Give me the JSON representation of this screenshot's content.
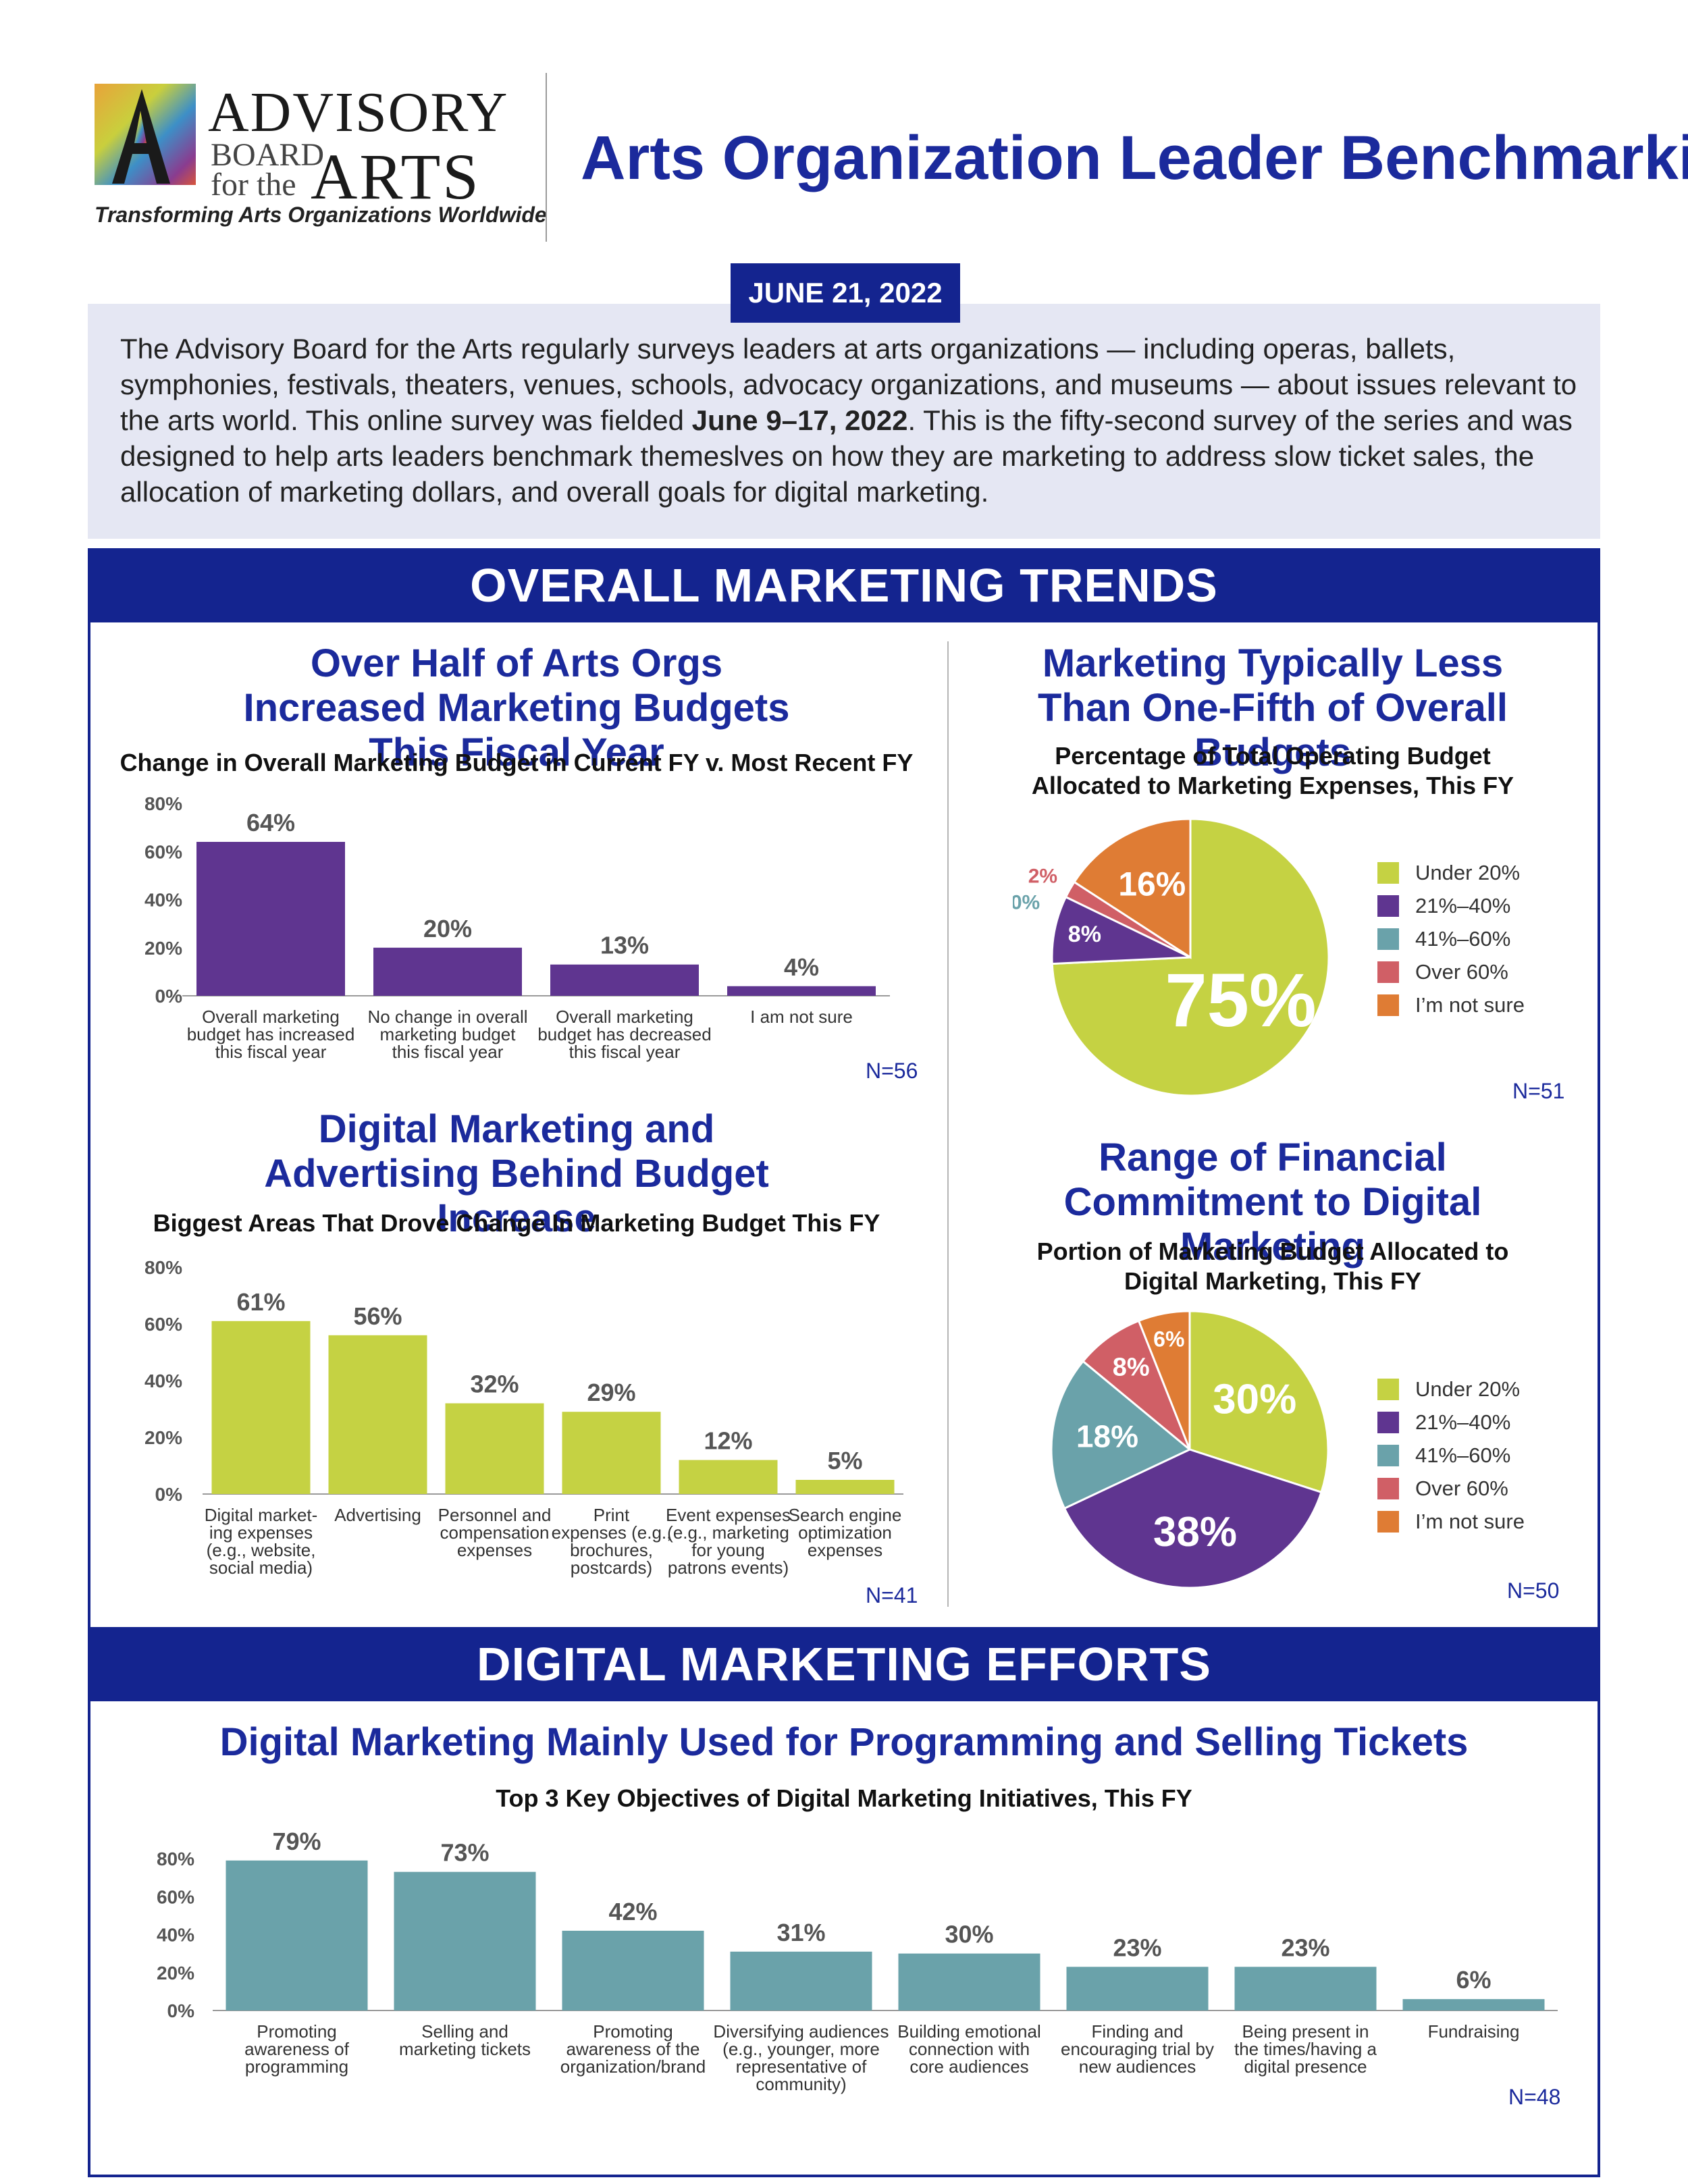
{
  "header": {
    "logo": {
      "line1": "ADVISORY",
      "line2": "BOARD",
      "line3": "for the",
      "line4": "ARTS",
      "tagline": "Transforming Arts Organizations Worldwide"
    },
    "title": "Arts Organization Leader Benchmarking",
    "date": "JUNE 21, 2022"
  },
  "intro": {
    "part1": "The Advisory Board for the Arts regularly surveys leaders at arts organizations — including  operas, ballets, symphonies, festivals, theaters, venues, schools, advocacy organizations, and museums — about issues relevant to the arts world. This online survey was fielded ",
    "bold": "June 9–17, 2022",
    "part2": ". This is the fifty-second survey of the series and was designed to help arts leaders benchmark themeslves on how they are marketing to address slow ticket sales, the allocation of marketing dollars, and overall goals for digital marketing."
  },
  "sections": {
    "trends": "OVERALL MARKETING TRENDS",
    "digital": "DIGITAL MARKETING EFFORTS"
  },
  "colors": {
    "navy": "#14248f",
    "purple": "#5f3590",
    "lime": "#c5d243",
    "teal": "#6aa2aa",
    "red": "#d05f66",
    "orange": "#df7c34"
  },
  "chart_data": [
    {
      "type": "bar",
      "title": "Over Half of Arts Orgs Increased Marketing Budgets This Fiscal Year",
      "subtitle": "Change in Overall Marketing Budget in Current FY v. Most Recent FY",
      "categories": [
        [
          "Overall marketing",
          "budget has increased",
          "this fiscal year"
        ],
        [
          "No change in overall",
          "marketing budget",
          "this fiscal year"
        ],
        [
          "Overall marketing",
          "budget has decreased",
          "this fiscal year"
        ],
        [
          "I am not sure"
        ]
      ],
      "values": [
        64,
        20,
        13,
        4
      ],
      "value_labels": [
        "64%",
        "20%",
        "13%",
        "4%"
      ],
      "yticks": [
        "0%",
        "20%",
        "40%",
        "60%",
        "80%"
      ],
      "ylim": [
        0,
        80
      ],
      "color": "#5f3590",
      "n": "N=56"
    },
    {
      "type": "bar",
      "title": "Digital Marketing and Advertising Behind Budget Increase",
      "subtitle": "Biggest Areas That Drove Change In Marketing Budget This FY",
      "categories": [
        [
          "Digital market-",
          "ing expenses",
          "(e.g., website,",
          "social media)"
        ],
        [
          "Advertising"
        ],
        [
          "Personnel and",
          "compensation",
          "expenses"
        ],
        [
          "Print",
          "expenses (e.g.,",
          "brochures,",
          "postcards)"
        ],
        [
          "Event expenses",
          "(e.g., marketing",
          "for young",
          "patrons events)"
        ],
        [
          "Search engine",
          "optimization",
          "expenses"
        ]
      ],
      "values": [
        61,
        56,
        32,
        29,
        12,
        5
      ],
      "value_labels": [
        "61%",
        "56%",
        "32%",
        "29%",
        "12%",
        "5%"
      ],
      "yticks": [
        "0%",
        "20%",
        "40%",
        "60%",
        "80%"
      ],
      "ylim": [
        0,
        80
      ],
      "color": "#c5d243",
      "n": "N=41"
    },
    {
      "type": "pie",
      "title": "Marketing Typically Less Than One-Fifth of Overall Budgets",
      "subtitle": "Percentage of Total Operating Budget Allocated to Marketing Expenses, This FY",
      "labels": [
        "Under 20%",
        "21%–40%",
        "41%–60%",
        "Over 60%",
        "I’m not sure"
      ],
      "values": [
        75,
        8,
        0,
        2,
        16
      ],
      "value_labels": [
        "75%",
        "8%",
        "0%",
        "2%",
        "16%"
      ],
      "colors": [
        "#c5d243",
        "#5f3590",
        "#6aa2aa",
        "#d05f66",
        "#df7c34"
      ],
      "n": "N=51"
    },
    {
      "type": "pie",
      "title": "Range of Financial Commitment to Digital Marketing",
      "subtitle": "Portion of Marketing Budget Allocated to Digital Marketing, This FY",
      "labels": [
        "Under 20%",
        "21%–40%",
        "41%–60%",
        "Over 60%",
        "I’m not sure"
      ],
      "values": [
        30,
        38,
        18,
        8,
        6
      ],
      "value_labels": [
        "30%",
        "38%",
        "18%",
        "8%",
        "6%"
      ],
      "colors": [
        "#c5d243",
        "#5f3590",
        "#6aa2aa",
        "#d05f66",
        "#df7c34"
      ],
      "n": "N=50"
    },
    {
      "type": "bar",
      "title": "Digital Marketing Mainly Used for Programming and Selling Tickets",
      "subtitle": "Top 3 Key Objectives of Digital Marketing Initiatives, This FY",
      "categories": [
        [
          "Promoting",
          "awareness of",
          "programming"
        ],
        [
          "Selling and",
          "marketing tickets"
        ],
        [
          "Promoting",
          "awareness of the",
          "organization/brand"
        ],
        [
          "Diversifying audiences",
          "(e.g., younger, more",
          "representative of",
          "community)"
        ],
        [
          "Building emotional",
          "connection with",
          "core audiences"
        ],
        [
          "Finding and",
          "encouraging trial by",
          "new audiences"
        ],
        [
          "Being present in",
          "the times/having a",
          "digital presence"
        ],
        [
          "Fundraising"
        ]
      ],
      "values": [
        79,
        73,
        42,
        31,
        30,
        23,
        23,
        6
      ],
      "value_labels": [
        "79%",
        "73%",
        "42%",
        "31%",
        "30%",
        "23%",
        "23%",
        "6%"
      ],
      "yticks": [
        "0%",
        "20%",
        "40%",
        "60%",
        "80%"
      ],
      "ylim": [
        0,
        80
      ],
      "color": "#6aa2aa",
      "n": "N=48"
    }
  ]
}
